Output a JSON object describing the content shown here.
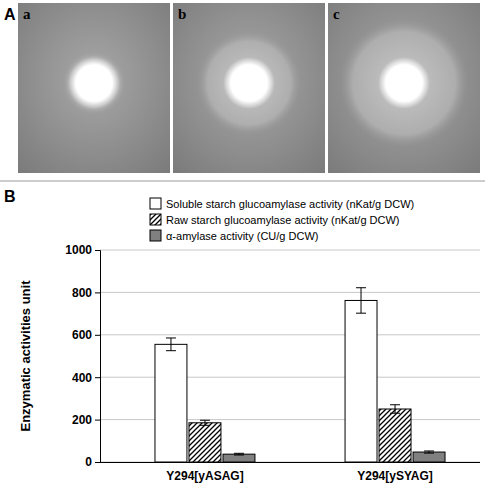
{
  "figure": {
    "panel_a": {
      "label": "A",
      "subpanels": [
        "a",
        "b",
        "c"
      ]
    },
    "panel_b": {
      "label": "B"
    }
  },
  "chart_data": {
    "type": "bar",
    "ylabel": "Enzymatic activities unit",
    "categories": [
      "Y294[yASAG]",
      "Y294[ySYAG]"
    ],
    "series": [
      {
        "name": "Soluble starch glucoamylase activity (nKat/g DCW)",
        "color": "#ffffff",
        "marker": "solid",
        "values": [
          555,
          762
        ],
        "errors": [
          30,
          60
        ]
      },
      {
        "name": "Raw starch glucoamylase activity (nKat/g DCW)",
        "color": "#000000",
        "marker": "hatch",
        "values": [
          185,
          250
        ],
        "errors": [
          12,
          20
        ]
      },
      {
        "name": "α-amylase activity (CU/g DCW)",
        "color": "#808080",
        "marker": "solid",
        "values": [
          37,
          47
        ],
        "errors": [
          4,
          5
        ]
      }
    ],
    "ylim": [
      0,
      1000
    ],
    "yticks": [
      0,
      200,
      400,
      600,
      800,
      1000
    ],
    "grid": true,
    "legend": "top"
  }
}
